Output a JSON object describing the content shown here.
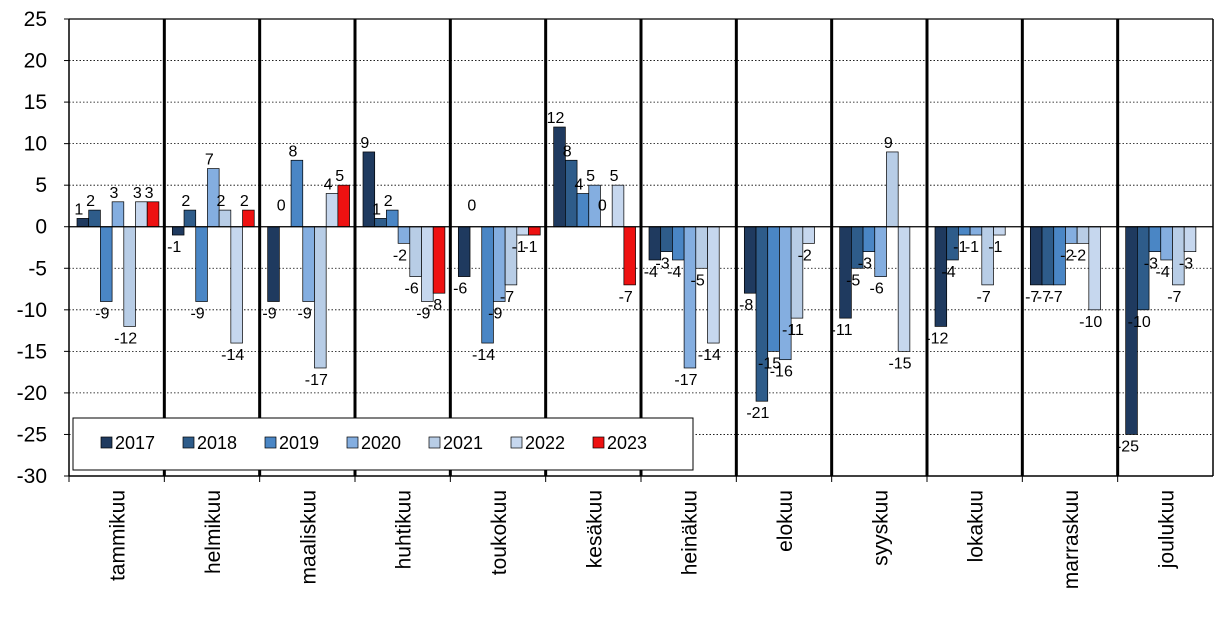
{
  "chart_data": {
    "type": "bar",
    "title": "",
    "xlabel": "",
    "ylabel": "",
    "ylim": [
      -30,
      25
    ],
    "yticks": [
      25,
      20,
      15,
      10,
      5,
      0,
      -5,
      -10,
      -15,
      -20,
      -25,
      -30
    ],
    "grid": "horizontal dotted",
    "legend_position": "bottom-left",
    "categories": [
      "tammikuu",
      "helmikuu",
      "maaliskuu",
      "huhtikuu",
      "toukokuu",
      "kesäkuu",
      "heinäkuu",
      "elokuu",
      "syyskuu",
      "lokakuu",
      "marraskuu",
      "joulukuu"
    ],
    "series": [
      {
        "name": "2017",
        "color": "#1f3a5f",
        "values": [
          1,
          -1,
          -9,
          9,
          -6,
          12,
          -4,
          -8,
          -11,
          -12,
          -7,
          -25
        ]
      },
      {
        "name": "2018",
        "color": "#2e5c8a",
        "values": [
          2,
          2,
          0,
          1,
          0,
          8,
          -3,
          -21,
          -5,
          -4,
          -7,
          -10
        ]
      },
      {
        "name": "2019",
        "color": "#4a86c5",
        "values": [
          -9,
          -9,
          8,
          2,
          -14,
          4,
          -4,
          -15,
          -3,
          -1,
          -7,
          -3
        ]
      },
      {
        "name": "2020",
        "color": "#84aee0",
        "values": [
          3,
          7,
          -9,
          -2,
          -9,
          5,
          -17,
          -16,
          -6,
          -1,
          -2,
          -4
        ]
      },
      {
        "name": "2021",
        "color": "#b8cde6",
        "values": [
          -12,
          2,
          -17,
          -6,
          -7,
          0,
          -5,
          -11,
          9,
          -7,
          -2,
          -7
        ]
      },
      {
        "name": "2022",
        "color": "#c6d7ee",
        "values": [
          3,
          -14,
          4,
          -9,
          -1,
          5,
          -14,
          -2,
          -15,
          -1,
          -10,
          -3
        ]
      },
      {
        "name": "2023",
        "color": "#ee1111",
        "values": [
          3,
          2,
          5,
          -8,
          -1,
          -7,
          null,
          null,
          null,
          null,
          null,
          null
        ]
      }
    ]
  }
}
